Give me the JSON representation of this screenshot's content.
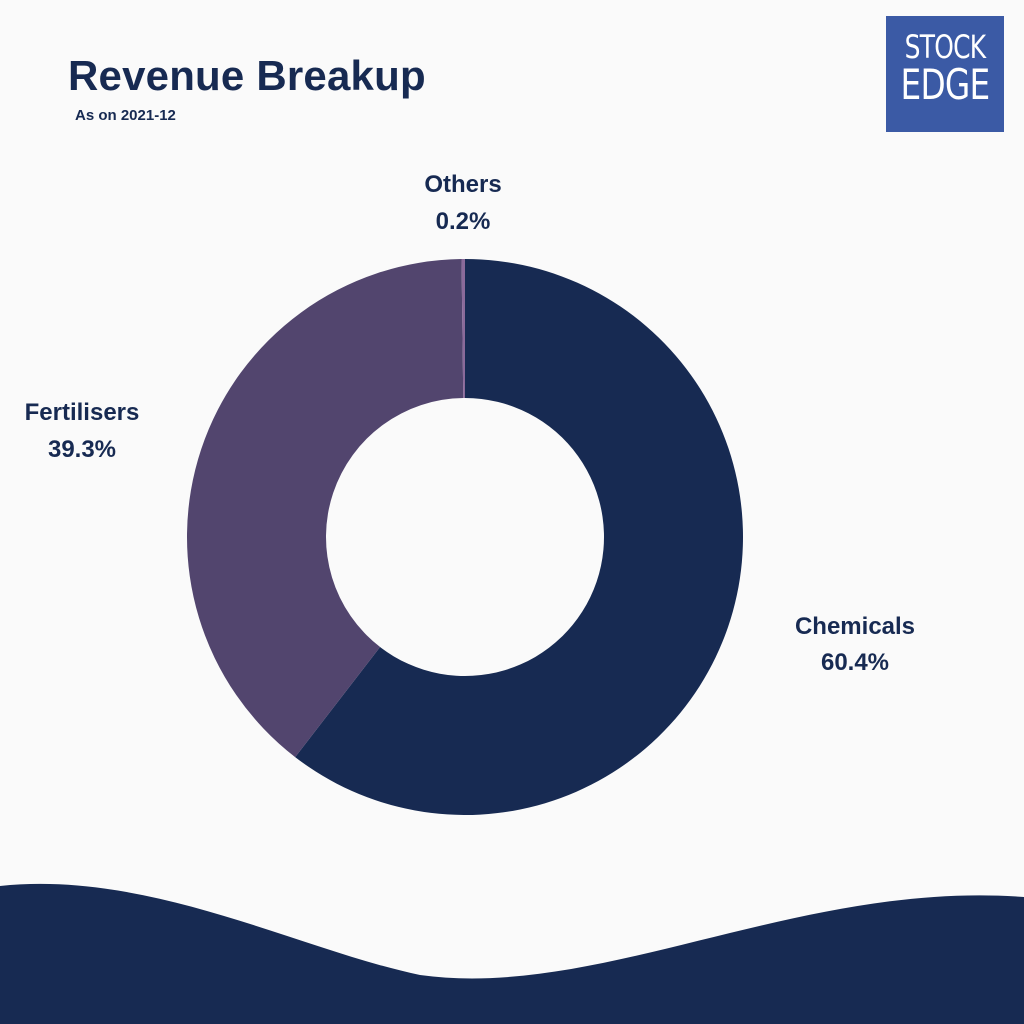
{
  "title": "Revenue Breakup",
  "subtitle": "As on 2021-12",
  "logo": {
    "line1": "STOCK",
    "line2": "EDGE",
    "color": "#3b5aa5"
  },
  "chart_data": {
    "type": "pie",
    "style": "donut",
    "slices": [
      {
        "label": "Chemicals",
        "value": 60.4,
        "display": "60.4%",
        "color": "#172a52"
      },
      {
        "label": "Fertilisers",
        "value": 39.3,
        "display": "39.3%",
        "color": "#52456e"
      },
      {
        "label": "Others",
        "value": 0.2,
        "display": "0.2%",
        "color": "#8a6a9a"
      }
    ]
  },
  "colors": {
    "background": "#fafafa",
    "text": "#172a52",
    "wave": "#172a52"
  }
}
